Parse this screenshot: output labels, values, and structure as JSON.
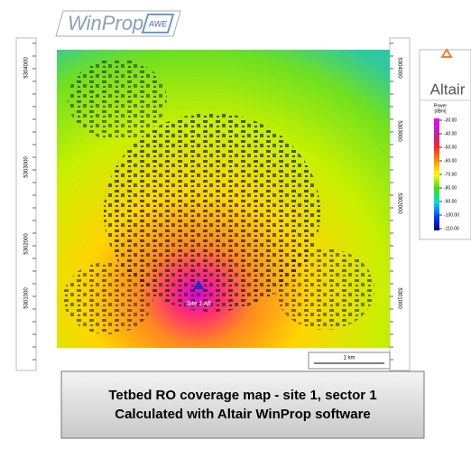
{
  "logo": {
    "text": "WinProp",
    "badge": "AWE"
  },
  "axis_left": [
    "5304000",
    "5303000",
    "5302000",
    "5301000"
  ],
  "axis_right": [
    "5304000",
    "5303000",
    "5302000",
    "5301000"
  ],
  "map": {
    "site_label": "Site 1 Alt"
  },
  "scale_bar": "1 km",
  "legend": {
    "brand": "Altair",
    "title": "Power",
    "unit": "[dBm]",
    "ticks": [
      "-30.00",
      "-40.00",
      "-50.00",
      "-60.00",
      "-70.00",
      "-80.00",
      "-90.00",
      "-100.00",
      "-110.00"
    ]
  },
  "caption": [
    "Tetbed RO coverage map - site 1, sector 1",
    "Calculated with Altair WinProp software"
  ]
}
